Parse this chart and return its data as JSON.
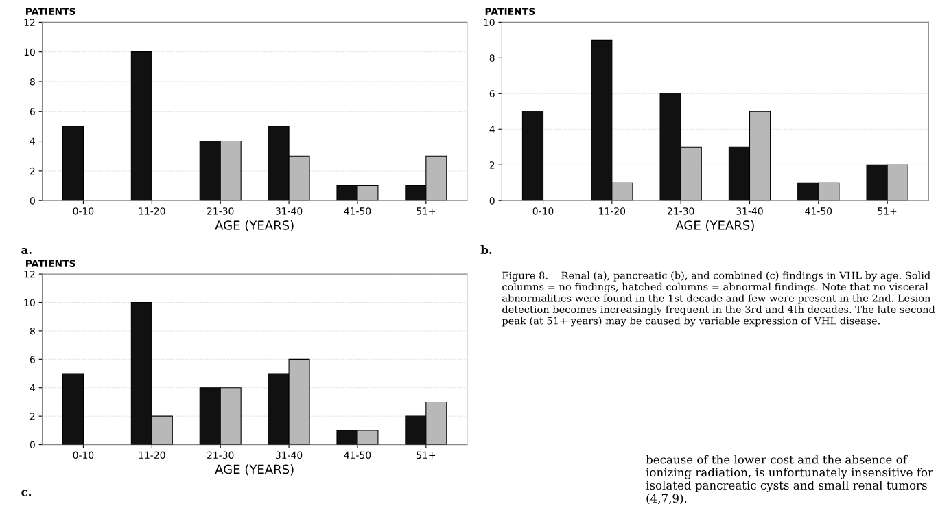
{
  "chart_data": [
    {
      "type": "bar",
      "ylabel": "PATIENTS",
      "xlabel": "AGE (YEARS)",
      "categories": [
        "0-10",
        "11-20",
        "21-30",
        "31-40",
        "41-50",
        "51+"
      ],
      "ylim": [
        0,
        12
      ],
      "yticks": [
        0,
        2,
        4,
        6,
        8,
        10,
        12
      ],
      "grid": "y",
      "annotations": [
        "a."
      ],
      "series": [
        {
          "color": "#111111",
          "values": [
            5,
            10,
            4,
            5,
            1,
            1
          ]
        },
        {
          "color": "#b8b8b8",
          "values": [
            null,
            null,
            4,
            3,
            1,
            3
          ]
        }
      ]
    },
    {
      "type": "bar",
      "ylabel": "PATIENTS",
      "xlabel": "AGE (YEARS)",
      "categories": [
        "0-10",
        "11-20",
        "21-30",
        "31-40",
        "41-50",
        "51+"
      ],
      "ylim": [
        0,
        10
      ],
      "yticks": [
        0,
        2,
        4,
        6,
        8,
        10
      ],
      "grid": "y",
      "annotations": [
        "b."
      ],
      "series": [
        {
          "color": "#111111",
          "values": [
            5,
            9,
            6,
            3,
            1,
            2
          ]
        },
        {
          "color": "#b8b8b8",
          "values": [
            null,
            1,
            3,
            5,
            1,
            2
          ]
        }
      ]
    },
    {
      "type": "bar",
      "ylabel": "PATIENTS",
      "xlabel": "AGE (YEARS)",
      "categories": [
        "0-10",
        "11-20",
        "21-30",
        "31-40",
        "41-50",
        "51+"
      ],
      "ylim": [
        0,
        12
      ],
      "yticks": [
        0,
        2,
        4,
        6,
        8,
        10,
        12
      ],
      "grid": "y",
      "annotations": [
        "c."
      ],
      "series": [
        {
          "color": "#111111",
          "values": [
            5,
            10,
            4,
            5,
            1,
            2
          ]
        },
        {
          "color": "#b8b8b8",
          "values": [
            null,
            2,
            4,
            6,
            1,
            3
          ]
        }
      ]
    },
    {
      "type": "other",
      "annotations": [
        "Figure 8.    Renal (a), pancreatic (b), and combined (c) findings in VHL by age. Solid columns = no findings, hatched columns = abnormal findings. Note that no visceral abnormalities were found in the 1st decade and few were present in the 2nd. Lesion detection becomes increasingly frequent in the 3rd and 4th decades. The late second peak (at 51+ years) may be caused by variable expression of VHL disease.",
        "because of the lower cost and the absence of ionizing radiation, is unfortunately insensitive for isolated pancreatic cysts and small renal tumors (4,7,9)."
      ]
    }
  ]
}
